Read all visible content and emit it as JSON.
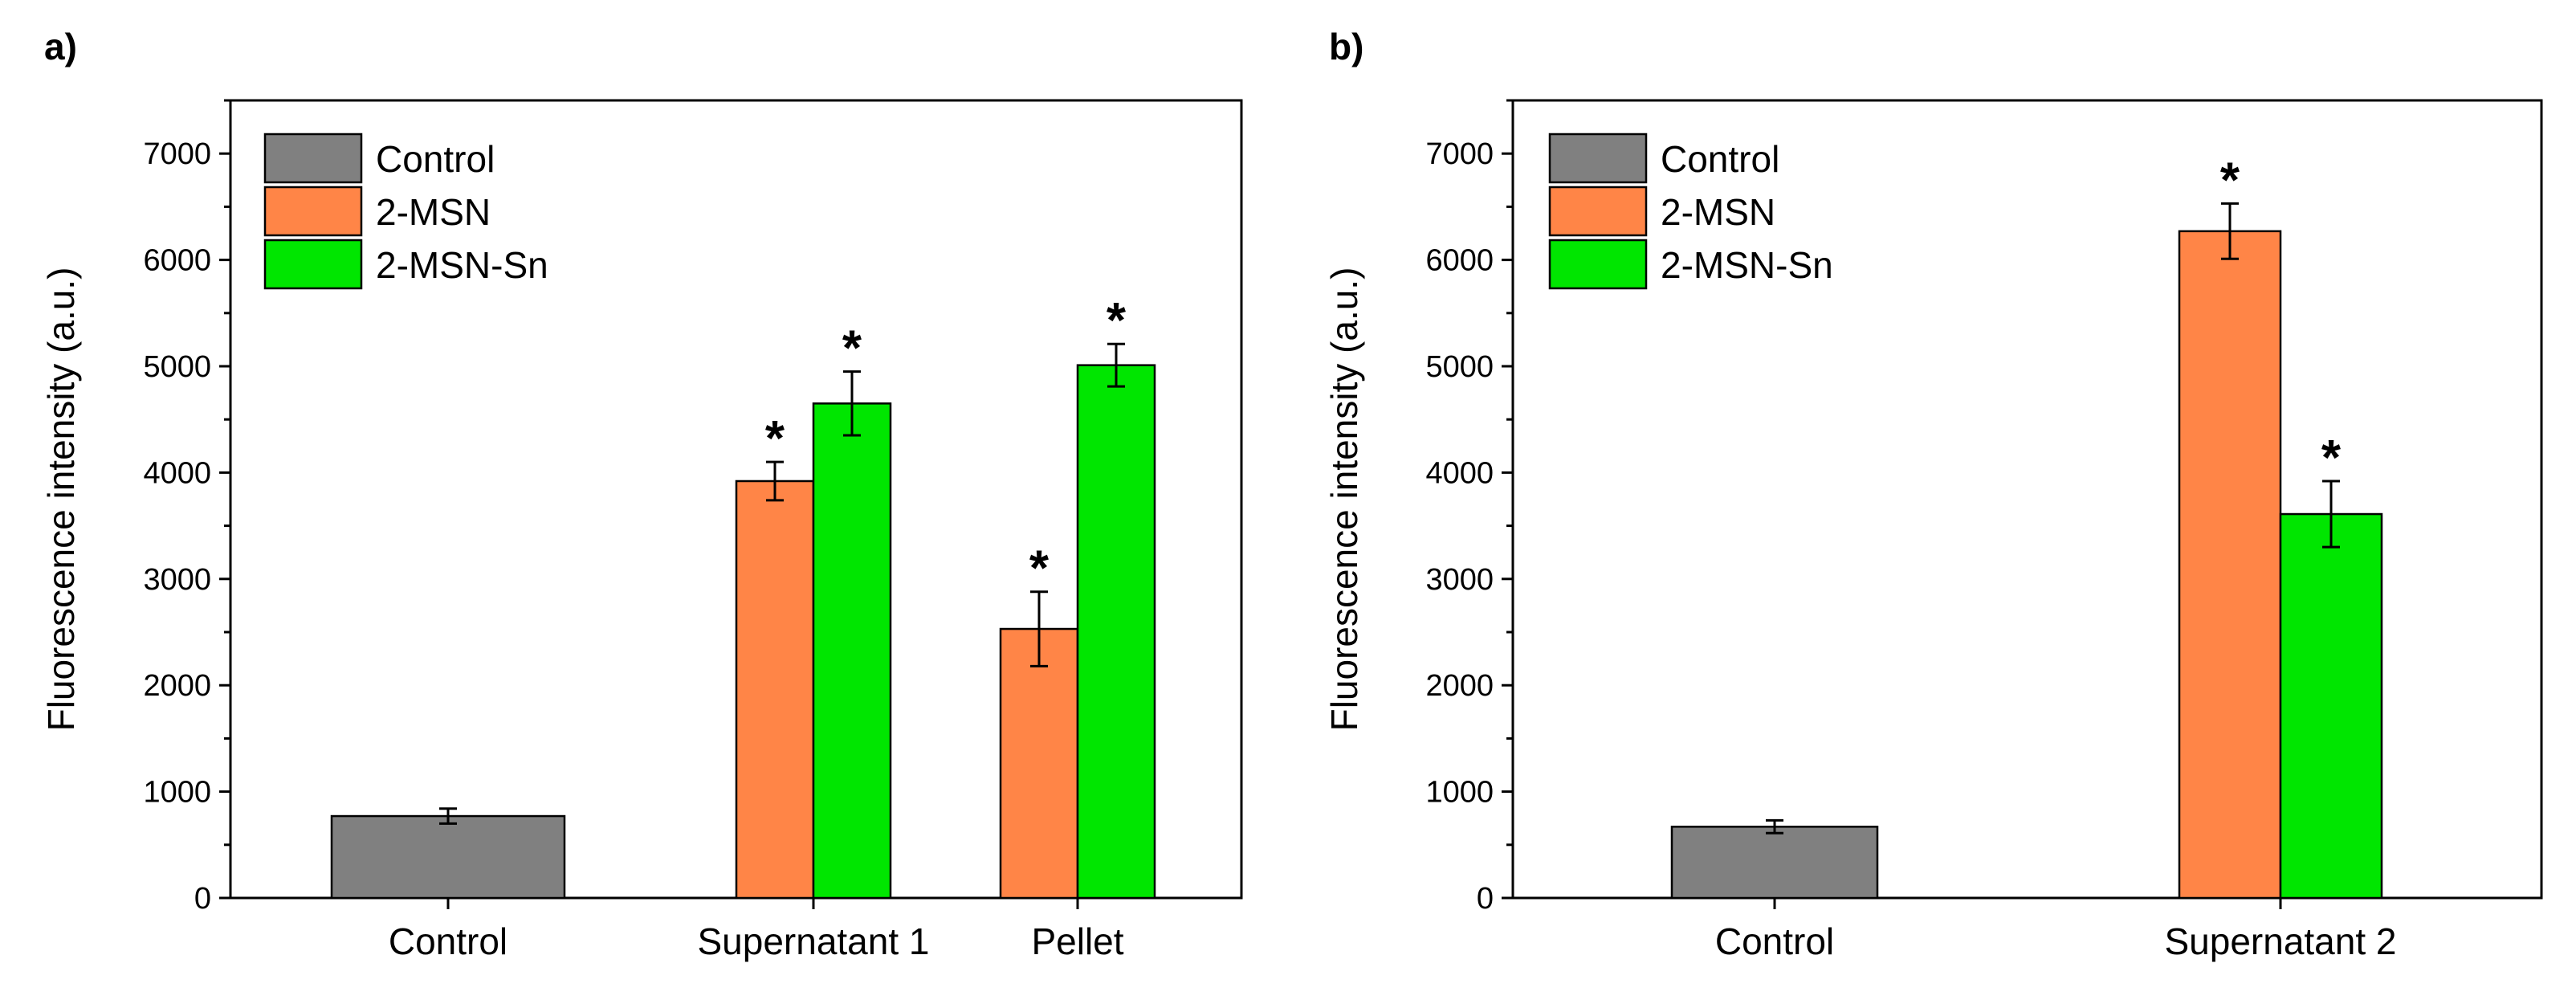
{
  "colors": {
    "Control": "#808080",
    "2-MSN": "#ff8547",
    "2-MSN-Sn": "#00e600"
  },
  "chart_data": [
    {
      "type": "bar",
      "panel_label": "a)",
      "title": "",
      "xlabel": "",
      "ylabel": "Fluorescence intensity (a.u.)",
      "ylim": [
        0,
        7500
      ],
      "yticks": [
        0,
        1000,
        2000,
        3000,
        4000,
        5000,
        6000,
        7000
      ],
      "legend": {
        "position": "top-left",
        "entries": [
          "Control",
          "2-MSN",
          "2-MSN-Sn"
        ]
      },
      "groups": [
        {
          "category": "Control",
          "bars": [
            {
              "series": "Control",
              "value": 770,
              "error": 70,
              "significant": false
            }
          ]
        },
        {
          "category": "Supernatant 1",
          "bars": [
            {
              "series": "2-MSN",
              "value": 3920,
              "error": 180,
              "significant": true
            },
            {
              "series": "2-MSN-Sn",
              "value": 4650,
              "error": 300,
              "significant": true
            }
          ]
        },
        {
          "category": "Pellet",
          "bars": [
            {
              "series": "2-MSN",
              "value": 2530,
              "error": 350,
              "significant": true
            },
            {
              "series": "2-MSN-Sn",
              "value": 5010,
              "error": 200,
              "significant": true
            }
          ]
        }
      ],
      "significance_marker": "*"
    },
    {
      "type": "bar",
      "panel_label": "b)",
      "title": "",
      "xlabel": "",
      "ylabel": "Fluorescence intensity (a.u.)",
      "ylim": [
        0,
        7500
      ],
      "yticks": [
        0,
        1000,
        2000,
        3000,
        4000,
        5000,
        6000,
        7000
      ],
      "legend": {
        "position": "top-left",
        "entries": [
          "Control",
          "2-MSN",
          "2-MSN-Sn"
        ]
      },
      "groups": [
        {
          "category": "Control",
          "bars": [
            {
              "series": "Control",
              "value": 670,
              "error": 60,
              "significant": false
            }
          ]
        },
        {
          "category": "Supernatant 2",
          "bars": [
            {
              "series": "2-MSN",
              "value": 6270,
              "error": 260,
              "significant": true
            },
            {
              "series": "2-MSN-Sn",
              "value": 3610,
              "error": 310,
              "significant": true
            }
          ]
        }
      ],
      "significance_marker": "*"
    }
  ]
}
